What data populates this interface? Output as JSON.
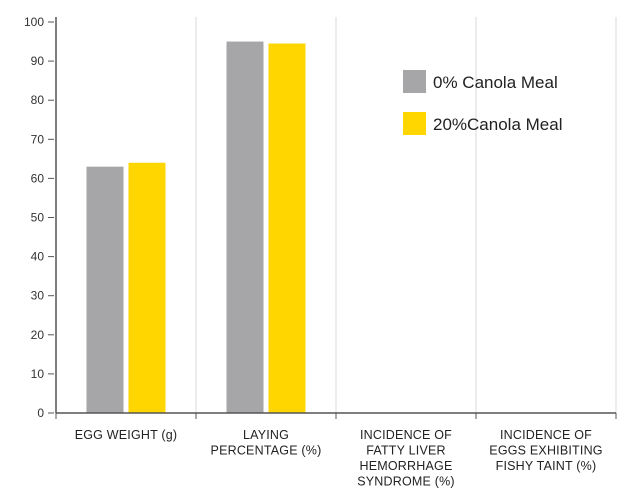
{
  "chart_data": {
    "type": "bar",
    "title": "",
    "xlabel": "",
    "ylabel": "",
    "ylim": [
      0,
      100
    ],
    "yticks": [
      0,
      10,
      20,
      30,
      40,
      50,
      60,
      70,
      80,
      90,
      100
    ],
    "categories": [
      [
        "EGG WEIGHT (g)"
      ],
      [
        "LAYING",
        "PERCENTAGE (%)"
      ],
      [
        "INCIDENCE OF",
        "FATTY LIVER",
        "HEMORRHAGE",
        "SYNDROME (%)"
      ],
      [
        "INCIDENCE OF",
        "EGGS EXHIBITING",
        "FISHY TAINT (%)"
      ]
    ],
    "series": [
      {
        "name": "0% Canola Meal",
        "color": "#a6a6a8",
        "values": [
          63,
          95,
          0,
          0
        ]
      },
      {
        "name": "20%Canola Meal",
        "color": "#ffd600",
        "values": [
          64,
          94.5,
          0,
          0
        ]
      }
    ],
    "grid": "vertical-category-separators",
    "legend_position": "top-right",
    "axis_color": "#555555",
    "grid_color": "#d9d9d9"
  }
}
